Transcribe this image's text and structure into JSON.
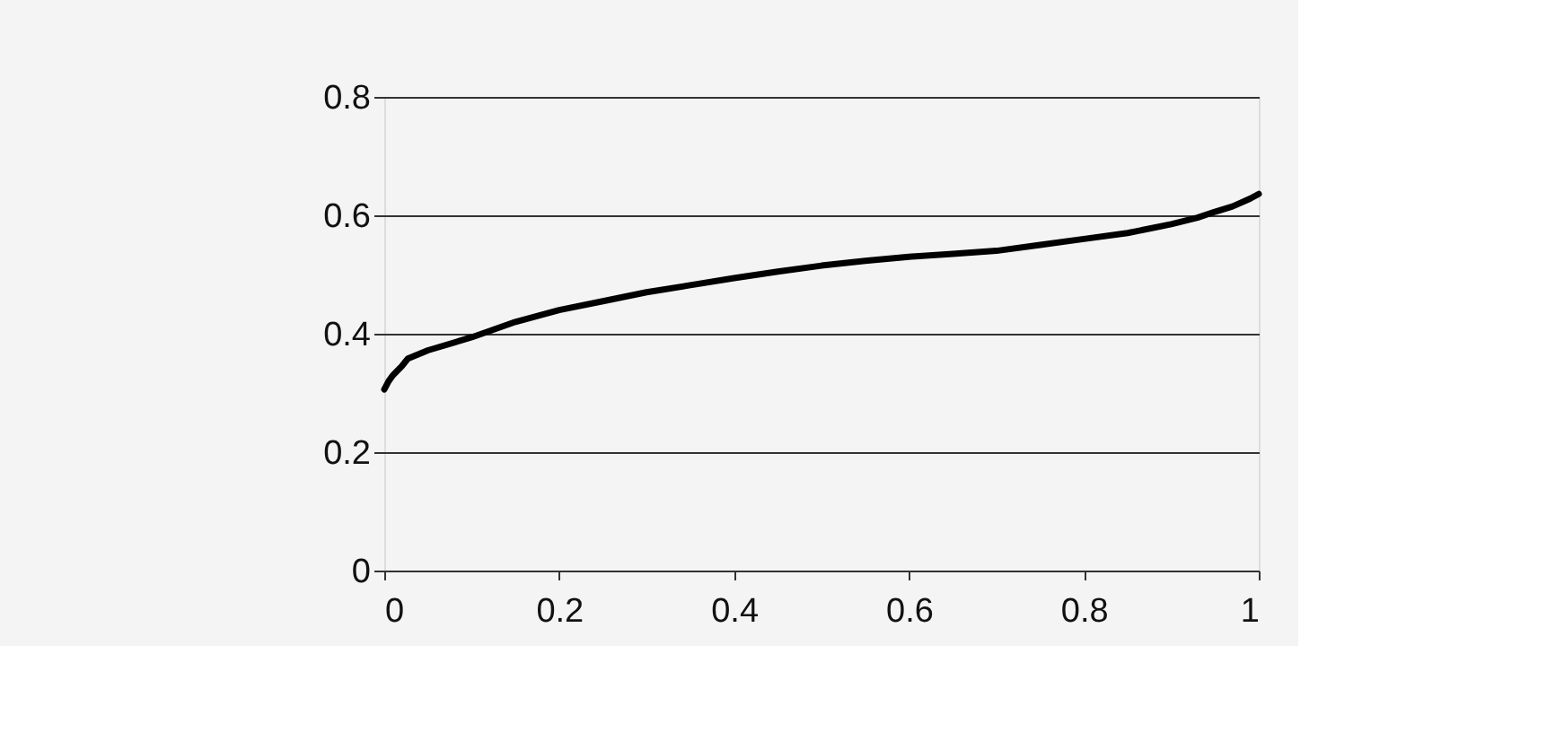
{
  "chart_data": {
    "type": "line",
    "x": [
      0,
      0.005,
      0.01,
      0.02,
      0.027,
      0.05,
      0.1,
      0.15,
      0.2,
      0.25,
      0.3,
      0.35,
      0.4,
      0.45,
      0.5,
      0.55,
      0.6,
      0.65,
      0.7,
      0.75,
      0.8,
      0.85,
      0.9,
      0.93,
      0.95,
      0.97,
      0.99,
      1
    ],
    "series": [
      {
        "color": "#000000",
        "values": [
          0.306,
          0.32,
          0.33,
          0.345,
          0.358,
          0.372,
          0.394,
          0.42,
          0.44,
          0.455,
          0.47,
          0.482,
          0.494,
          0.505,
          0.515,
          0.523,
          0.53,
          0.535,
          0.54,
          0.55,
          0.56,
          0.57,
          0.585,
          0.596,
          0.606,
          0.615,
          0.628,
          0.636
        ]
      }
    ],
    "xlim": [
      0,
      1
    ],
    "xticks": [
      0,
      0.2,
      0.4,
      0.6,
      0.8,
      1
    ],
    "ylim": [
      0,
      0.8
    ],
    "yticks": [
      0,
      0.2,
      0.4,
      0.6,
      0.8
    ],
    "grid": "y",
    "marker": "none",
    "line_style": "solid"
  }
}
